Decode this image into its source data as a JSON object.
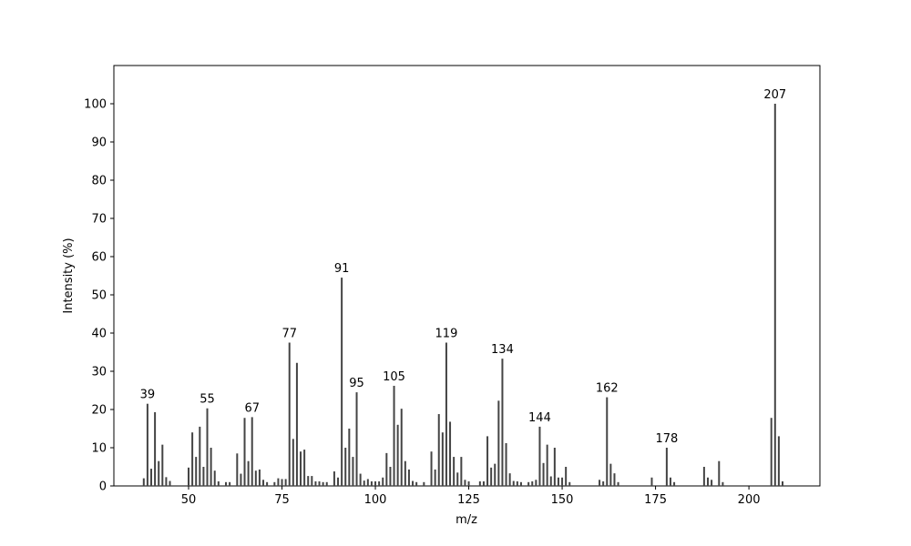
{
  "chart_data": {
    "type": "bar",
    "x_label": "m/z",
    "y_label": "Intensity (%)",
    "x": [
      38,
      39,
      40,
      41,
      42,
      43,
      44,
      45,
      50,
      51,
      52,
      53,
      54,
      55,
      56,
      57,
      58,
      60,
      61,
      63,
      64,
      65,
      66,
      67,
      68,
      69,
      70,
      71,
      73,
      74,
      75,
      76,
      77,
      78,
      79,
      80,
      81,
      82,
      83,
      84,
      85,
      86,
      87,
      89,
      90,
      91,
      92,
      93,
      94,
      95,
      96,
      97,
      98,
      99,
      100,
      101,
      102,
      103,
      104,
      105,
      106,
      107,
      108,
      109,
      110,
      111,
      113,
      115,
      116,
      117,
      118,
      119,
      120,
      121,
      122,
      123,
      124,
      125,
      128,
      129,
      130,
      131,
      132,
      133,
      134,
      135,
      136,
      137,
      138,
      139,
      141,
      142,
      143,
      144,
      145,
      146,
      147,
      148,
      149,
      150,
      151,
      152,
      160,
      161,
      162,
      163,
      164,
      165,
      174,
      178,
      179,
      180,
      188,
      189,
      190,
      192,
      193,
      206,
      207,
      208,
      209
    ],
    "values": [
      2,
      21.5,
      4.5,
      19.3,
      6.5,
      10.8,
      2.3,
      1.3,
      4.8,
      14,
      7.6,
      15.5,
      5,
      20.3,
      10,
      4,
      1.2,
      1,
      1,
      8.5,
      3.2,
      17.8,
      6.5,
      18,
      4,
      4.3,
      1.6,
      1,
      1,
      2,
      1.8,
      1.8,
      37.5,
      12.3,
      32.2,
      9,
      9.5,
      2.6,
      2.6,
      1.2,
      1.2,
      1,
      1,
      3.8,
      2.2,
      54.5,
      10,
      15,
      7.6,
      24.5,
      3.2,
      1.4,
      1.8,
      1.2,
      1.2,
      1.2,
      2.2,
      8.6,
      5,
      26.2,
      16,
      20.2,
      6.5,
      4.3,
      1.3,
      1,
      1,
      9,
      4.3,
      18.8,
      14,
      37.5,
      16.8,
      7.6,
      3.5,
      7.6,
      1.6,
      1.2,
      1.2,
      1.2,
      13,
      4.8,
      5.8,
      22.3,
      33.3,
      11.2,
      3.3,
      1.3,
      1.2,
      1,
      1,
      1.2,
      1.6,
      15.5,
      6,
      10.8,
      2.5,
      10,
      2.2,
      2.2,
      5,
      1,
      1.6,
      1.2,
      23.2,
      5.8,
      3.3,
      1,
      2.2,
      10,
      2.2,
      1,
      5,
      2.2,
      1.6,
      6.5,
      1,
      17.8,
      100,
      13,
      1.2
    ],
    "annotations": [
      39,
      55,
      67,
      77,
      91,
      95,
      105,
      119,
      134,
      144,
      162,
      178,
      207
    ],
    "color": "#444444",
    "xlim": [
      30,
      219
    ],
    "ylim": [
      0,
      110
    ],
    "xticks": [
      50,
      75,
      100,
      125,
      150,
      175,
      200
    ],
    "yticks": [
      0,
      10,
      20,
      30,
      40,
      50,
      60,
      70,
      80,
      90,
      100
    ]
  }
}
